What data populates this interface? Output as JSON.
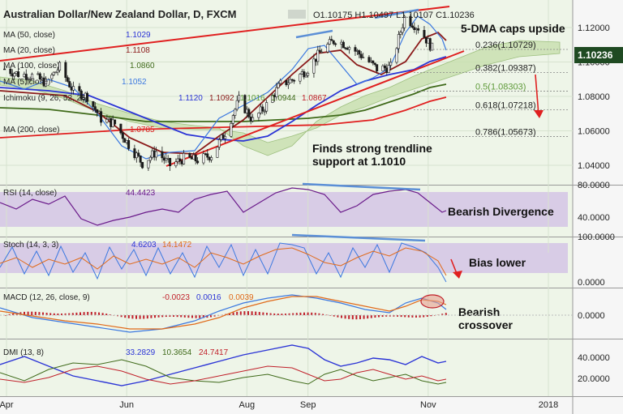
{
  "header": {
    "title": "Australian Dollar/New Zealand Dollar, D, FXCM",
    "ohlc": "O1.10175  H1.10497  L1.10107  C1.10236",
    "last_price": "1.10236"
  },
  "colors": {
    "price_bg": "#eef5e8",
    "indicator_bg": "#d8cce6",
    "candle": "#1a1a1a",
    "ma50": "#2b34d6",
    "ma20": "#8b1a1a",
    "ma100": "#3f6a1a",
    "ma5": "#3b78e0",
    "ma200": "#e02020",
    "trendline": "#e02020",
    "highlight": "#5b8fd6",
    "annotation": "#e02020",
    "last_price_box": "#1f4a22"
  },
  "legend": [
    {
      "label": "MA (50, close)",
      "value": "1.1029",
      "color": "#2b34d6"
    },
    {
      "label": "MA (20, close)",
      "value": "1.1108",
      "color": "#8b1a1a"
    },
    {
      "label": "MA (100, close)",
      "value": "1.0860",
      "color": "#3f6a1a"
    },
    {
      "label": "MA (5, close)",
      "value": "1.1052",
      "color": "#3b78e0"
    },
    {
      "label": "Ichimoku (9, 26, 52, 26)",
      "values": [
        "1.1120",
        "1.1092",
        "1.1016",
        "1.0944",
        "1.0867"
      ]
    },
    {
      "label": "MA (200, close)",
      "value": "1.0785",
      "color": "#e02020"
    }
  ],
  "price_axis": {
    "ticks": [
      "1.12000",
      "1.10000",
      "1.08000",
      "1.06000",
      "1.04000"
    ]
  },
  "fib_levels": [
    {
      "label": "0.236(1.10729)",
      "value": 1.10729
    },
    {
      "label": "0.382(1.09387)",
      "value": 1.09387
    },
    {
      "label": "0.5(1.08303)",
      "value": 1.08303
    },
    {
      "label": "0.618(1.07218)",
      "value": 1.07218
    },
    {
      "label": "0.786(1.05673)",
      "value": 1.05673
    }
  ],
  "annotations": {
    "dma": "5-DMA caps upside",
    "trendline": "Finds strong trendline support at 1.1010",
    "divergence": "Bearish Divergence",
    "bias": "Bias lower",
    "crossover": "Bearish crossover"
  },
  "rsi": {
    "label": "RSI (14, close)",
    "value": "44.4423",
    "ticks": [
      "80.0000",
      "40.0000"
    ]
  },
  "stoch": {
    "label": "Stoch (14, 3, 3)",
    "k": "4.6203",
    "d": "14.1472",
    "ticks": [
      "100.0000",
      "0.0000"
    ]
  },
  "macd": {
    "label": "MACD (12, 26, close, 9)",
    "hist": "-0.0023",
    "macd": "0.0016",
    "signal": "0.0039",
    "ticks": [
      "0.0000"
    ]
  },
  "dmi": {
    "label": "DMI (13, 8)",
    "plus": "33.2829",
    "minus": "10.3654",
    "adx": "24.7417",
    "ticks": [
      "40.0000",
      "20.0000"
    ]
  },
  "x_axis": {
    "ticks": [
      "Apr",
      "Jun",
      "Aug",
      "Sep",
      "Nov",
      "2018"
    ]
  },
  "chart_data": {
    "type": "candlestick",
    "title": "Australian Dollar/New Zealand Dollar, D, FXCM",
    "period": "2017-03-31 to 2017-11-06",
    "ylim": [
      1.032,
      1.132
    ],
    "close_points": [
      {
        "date": "2017-03-31",
        "close": 1.096
      },
      {
        "date": "2017-04-07",
        "close": 1.093
      },
      {
        "date": "2017-04-14",
        "close": 1.092
      },
      {
        "date": "2017-04-21",
        "close": 1.088
      },
      {
        "date": "2017-04-28",
        "close": 1.097
      },
      {
        "date": "2017-05-05",
        "close": 1.083
      },
      {
        "date": "2017-05-12",
        "close": 1.08
      },
      {
        "date": "2017-05-19",
        "close": 1.067
      },
      {
        "date": "2017-05-26",
        "close": 1.064
      },
      {
        "date": "2017-06-02",
        "close": 1.052
      },
      {
        "date": "2017-06-09",
        "close": 1.041
      },
      {
        "date": "2017-06-16",
        "close": 1.048
      },
      {
        "date": "2017-06-23",
        "close": 1.04
      },
      {
        "date": "2017-06-30",
        "close": 1.044
      },
      {
        "date": "2017-07-07",
        "close": 1.043
      },
      {
        "date": "2017-07-14",
        "close": 1.046
      },
      {
        "date": "2017-07-21",
        "close": 1.059
      },
      {
        "date": "2017-07-28",
        "close": 1.078
      },
      {
        "date": "2017-08-04",
        "close": 1.066
      },
      {
        "date": "2017-08-11",
        "close": 1.075
      },
      {
        "date": "2017-08-18",
        "close": 1.087
      },
      {
        "date": "2017-08-25",
        "close": 1.09
      },
      {
        "date": "2017-09-01",
        "close": 1.096
      },
      {
        "date": "2017-09-08",
        "close": 1.107
      },
      {
        "date": "2017-09-15",
        "close": 1.113
      },
      {
        "date": "2017-09-22",
        "close": 1.109
      },
      {
        "date": "2017-09-29",
        "close": 1.103
      },
      {
        "date": "2017-10-06",
        "close": 1.096
      },
      {
        "date": "2017-10-13",
        "close": 1.097
      },
      {
        "date": "2017-10-20",
        "close": 1.126
      },
      {
        "date": "2017-10-27",
        "close": 1.12
      },
      {
        "date": "2017-11-03",
        "close": 1.108
      },
      {
        "date": "2017-11-06",
        "close": 1.10236
      }
    ],
    "series": [
      {
        "name": "MA (5, close)",
        "last": 1.1052
      },
      {
        "name": "MA (20, close)",
        "last": 1.1108
      },
      {
        "name": "MA (50, close)",
        "last": 1.1029
      },
      {
        "name": "MA (100, close)",
        "last": 1.086
      },
      {
        "name": "MA (200, close)",
        "last": 1.0785
      }
    ],
    "rsi": {
      "last": 44.4423,
      "ylim": [
        30,
        85
      ]
    },
    "stochastic": {
      "k": 4.6203,
      "d": 14.1472,
      "ylim": [
        0,
        100
      ]
    },
    "macd": {
      "macd": 0.0016,
      "signal": 0.0039,
      "histogram": -0.0023
    },
    "dmi": {
      "plus_di": 33.2829,
      "minus_di": 10.3654,
      "adx": 24.7417
    }
  }
}
